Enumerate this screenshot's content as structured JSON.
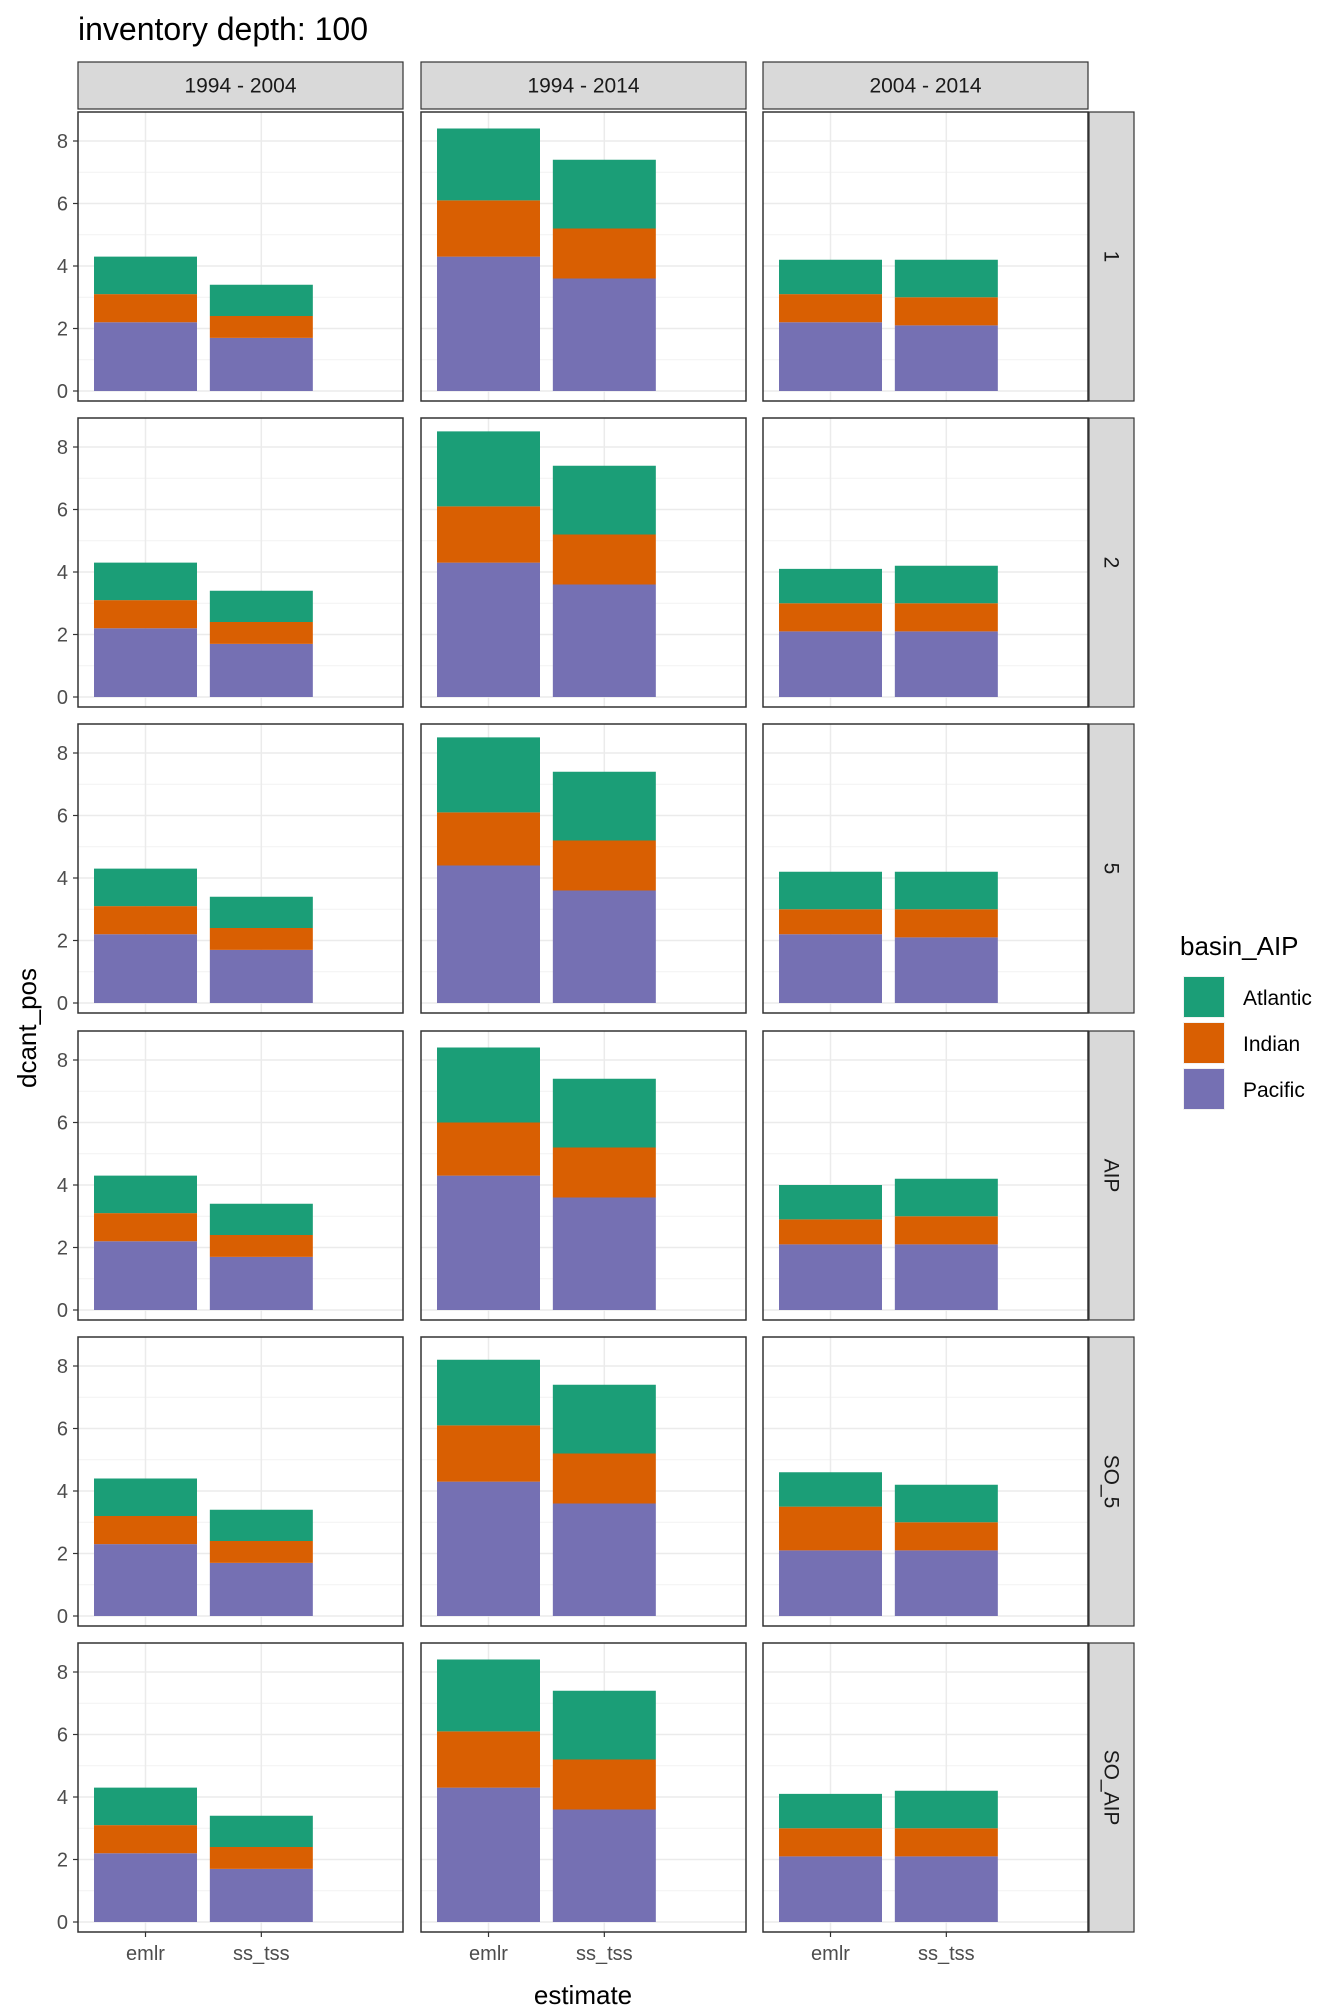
{
  "chart_data": {
    "type": "bar",
    "stacked": true,
    "title": "inventory depth: 100",
    "xlabel": "estimate",
    "ylabel": "dcant_pos",
    "ylim": [
      0,
      8.8
    ],
    "yticks": [
      0,
      2,
      4,
      6,
      8
    ],
    "grid": true,
    "legend_placement": "right",
    "facet_cols": [
      "1994 - 2004",
      "1994 - 2014",
      "2004 - 2014"
    ],
    "facet_rows": [
      "1",
      "2",
      "5",
      "AIP",
      "SO_5",
      "SO_AIP"
    ],
    "categories": [
      "emlr",
      "ss_tss"
    ],
    "legend": {
      "title": "basin_AIP",
      "series": [
        {
          "name": "Atlantic",
          "color": "#1B9E77"
        },
        {
          "name": "Indian",
          "color": "#D95F02"
        },
        {
          "name": "Pacific",
          "color": "#7570B3"
        }
      ]
    },
    "panels": [
      [
        {
          "emlr": {
            "Pacific": 2.2,
            "Indian": 0.9,
            "Atlantic": 1.2
          },
          "ss_tss": {
            "Pacific": 1.7,
            "Indian": 0.7,
            "Atlantic": 1.0
          }
        },
        {
          "emlr": {
            "Pacific": 4.3,
            "Indian": 1.8,
            "Atlantic": 2.3
          },
          "ss_tss": {
            "Pacific": 3.6,
            "Indian": 1.6,
            "Atlantic": 2.2
          }
        },
        {
          "emlr": {
            "Pacific": 2.2,
            "Indian": 0.9,
            "Atlantic": 1.1
          },
          "ss_tss": {
            "Pacific": 2.1,
            "Indian": 0.9,
            "Atlantic": 1.2
          }
        }
      ],
      [
        {
          "emlr": {
            "Pacific": 2.2,
            "Indian": 0.9,
            "Atlantic": 1.2
          },
          "ss_tss": {
            "Pacific": 1.7,
            "Indian": 0.7,
            "Atlantic": 1.0
          }
        },
        {
          "emlr": {
            "Pacific": 4.3,
            "Indian": 1.8,
            "Atlantic": 2.4
          },
          "ss_tss": {
            "Pacific": 3.6,
            "Indian": 1.6,
            "Atlantic": 2.2
          }
        },
        {
          "emlr": {
            "Pacific": 2.1,
            "Indian": 0.9,
            "Atlantic": 1.1
          },
          "ss_tss": {
            "Pacific": 2.1,
            "Indian": 0.9,
            "Atlantic": 1.2
          }
        }
      ],
      [
        {
          "emlr": {
            "Pacific": 2.2,
            "Indian": 0.9,
            "Atlantic": 1.2
          },
          "ss_tss": {
            "Pacific": 1.7,
            "Indian": 0.7,
            "Atlantic": 1.0
          }
        },
        {
          "emlr": {
            "Pacific": 4.4,
            "Indian": 1.7,
            "Atlantic": 2.4
          },
          "ss_tss": {
            "Pacific": 3.6,
            "Indian": 1.6,
            "Atlantic": 2.2
          }
        },
        {
          "emlr": {
            "Pacific": 2.2,
            "Indian": 0.8,
            "Atlantic": 1.2
          },
          "ss_tss": {
            "Pacific": 2.1,
            "Indian": 0.9,
            "Atlantic": 1.2
          }
        }
      ],
      [
        {
          "emlr": {
            "Pacific": 2.2,
            "Indian": 0.9,
            "Atlantic": 1.2
          },
          "ss_tss": {
            "Pacific": 1.7,
            "Indian": 0.7,
            "Atlantic": 1.0
          }
        },
        {
          "emlr": {
            "Pacific": 4.3,
            "Indian": 1.7,
            "Atlantic": 2.4
          },
          "ss_tss": {
            "Pacific": 3.6,
            "Indian": 1.6,
            "Atlantic": 2.2
          }
        },
        {
          "emlr": {
            "Pacific": 2.1,
            "Indian": 0.8,
            "Atlantic": 1.1
          },
          "ss_tss": {
            "Pacific": 2.1,
            "Indian": 0.9,
            "Atlantic": 1.2
          }
        }
      ],
      [
        {
          "emlr": {
            "Pacific": 2.3,
            "Indian": 0.9,
            "Atlantic": 1.2
          },
          "ss_tss": {
            "Pacific": 1.7,
            "Indian": 0.7,
            "Atlantic": 1.0
          }
        },
        {
          "emlr": {
            "Pacific": 4.3,
            "Indian": 1.8,
            "Atlantic": 2.1
          },
          "ss_tss": {
            "Pacific": 3.6,
            "Indian": 1.6,
            "Atlantic": 2.2
          }
        },
        {
          "emlr": {
            "Pacific": 2.1,
            "Indian": 1.4,
            "Atlantic": 1.1
          },
          "ss_tss": {
            "Pacific": 2.1,
            "Indian": 0.9,
            "Atlantic": 1.2
          }
        }
      ],
      [
        {
          "emlr": {
            "Pacific": 2.2,
            "Indian": 0.9,
            "Atlantic": 1.2
          },
          "ss_tss": {
            "Pacific": 1.7,
            "Indian": 0.7,
            "Atlantic": 1.0
          }
        },
        {
          "emlr": {
            "Pacific": 4.3,
            "Indian": 1.8,
            "Atlantic": 2.3
          },
          "ss_tss": {
            "Pacific": 3.6,
            "Indian": 1.6,
            "Atlantic": 2.2
          }
        },
        {
          "emlr": {
            "Pacific": 2.1,
            "Indian": 0.9,
            "Atlantic": 1.1
          },
          "ss_tss": {
            "Pacific": 2.1,
            "Indian": 0.9,
            "Atlantic": 1.2
          }
        }
      ]
    ]
  }
}
